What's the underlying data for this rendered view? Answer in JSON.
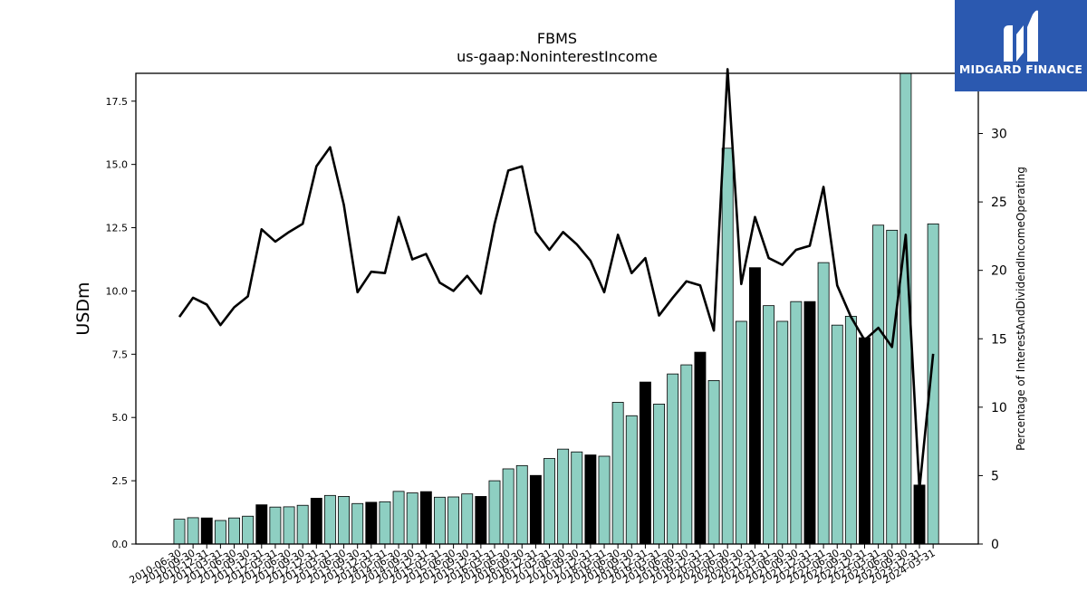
{
  "chart_data": {
    "type": "bar",
    "title": "FBMS",
    "subtitle": "us-gaap:NoninterestIncome",
    "ylabel": "USDm",
    "y2label": "Percentage of InterestAndDividendIncomeOperating",
    "ylim": [
      0,
      18.6
    ],
    "y2lim": [
      0,
      34.4
    ],
    "yticks": [
      "0.0",
      "2.5",
      "5.0",
      "7.5",
      "10.0",
      "12.5",
      "15.0",
      "17.5"
    ],
    "y2ticks": [
      "0",
      "5",
      "10",
      "15",
      "20",
      "25",
      "30"
    ],
    "colors": {
      "bar": "#8ecfc2",
      "bar_year_end": "#000000",
      "line": "#000000"
    },
    "categories": [
      "2010-06-30",
      "2010-09-30",
      "2010-12-31",
      "2011-03-31",
      "2011-06-30",
      "2011-09-30",
      "2011-12-31",
      "2012-03-31",
      "2012-06-30",
      "2012-09-30",
      "2012-12-31",
      "2013-03-31",
      "2013-06-30",
      "2013-09-30",
      "2013-12-31",
      "2014-03-31",
      "2014-06-30",
      "2014-09-30",
      "2014-12-31",
      "2015-03-31",
      "2015-06-30",
      "2015-09-30",
      "2015-12-31",
      "2016-03-31",
      "2016-06-30",
      "2016-09-30",
      "2016-12-31",
      "2017-03-31",
      "2017-06-30",
      "2017-09-30",
      "2017-12-31",
      "2018-03-31",
      "2018-06-30",
      "2018-09-30",
      "2018-12-31",
      "2019-03-31",
      "2019-06-30",
      "2019-09-30",
      "2019-12-31",
      "2020-03-31",
      "2020-06-30",
      "2020-09-30",
      "2020-12-31",
      "2021-03-31",
      "2021-06-30",
      "2021-09-30",
      "2021-12-31",
      "2022-03-31",
      "2022-06-30",
      "2022-09-30",
      "2022-12-31",
      "2023-03-31",
      "2023-06-30",
      "2023-09-30",
      "2023-12-31",
      "2024-03-31"
    ],
    "xtick_labels": [
      "2010-06-30",
      "2010-09-30",
      "2010-12-31",
      "2011-03-31",
      "2011-06-30",
      "2011-09-30",
      "2011-12-31",
      "2012-03-31",
      "2012-06-30",
      "2012-09-30",
      "2012-12-31",
      "2013-03-31",
      "2013-06-30",
      "2013-09-30",
      "2013-12-31",
      "2014-03-31",
      "2014-06-30",
      "2014-09-30",
      "2014-12-31",
      "2015-03-31",
      "2015-06-30",
      "2015-09-30",
      "2015-12-31",
      "2016-03-31",
      "2016-06-30",
      "2016-09-30",
      "2016-12-31",
      "2017-03-31",
      "2017-06-30",
      "2017-09-30",
      "2017-12-31",
      "2018-03-31",
      "2018-06-30",
      "2018-09-30",
      "2018-12-31",
      "2019-03-31",
      "2019-06-30",
      "2019-09-30",
      "2019-12-31",
      "2020-03-31",
      "2020-06-30",
      "2020-09-30",
      "2020-12-31",
      "2021-03-31",
      "2021-06-30",
      "2021-09-30",
      "2021-12-31",
      "2022-03-31",
      "2022-06-30",
      "2022-09-30",
      "2022-12-31",
      "2023-03-31",
      "2023-06-30",
      "2023-09-30",
      "2023-12-31",
      "2024-03-31"
    ],
    "series": [
      {
        "axis": "left",
        "kind": "bar",
        "values": [
          0.98,
          1.04,
          1.03,
          0.93,
          1.03,
          1.1,
          1.55,
          1.46,
          1.47,
          1.53,
          1.81,
          1.92,
          1.88,
          1.6,
          1.65,
          1.67,
          2.08,
          2.02,
          2.07,
          1.85,
          1.86,
          1.98,
          1.88,
          2.5,
          2.97,
          3.1,
          2.71,
          3.38,
          3.75,
          3.64,
          3.52,
          3.47,
          5.6,
          5.07,
          6.4,
          5.53,
          6.72,
          7.08,
          7.58,
          6.46,
          15.64,
          8.8,
          10.92,
          9.42,
          8.8,
          9.58,
          9.58,
          11.12,
          8.65,
          9.0,
          8.15,
          12.6,
          12.4,
          18.6,
          2.33,
          12.65
        ],
        "year_end": [
          false,
          false,
          true,
          false,
          false,
          false,
          true,
          false,
          false,
          false,
          true,
          false,
          false,
          false,
          true,
          false,
          false,
          false,
          true,
          false,
          false,
          false,
          true,
          false,
          false,
          false,
          true,
          false,
          false,
          false,
          true,
          false,
          false,
          false,
          true,
          false,
          false,
          false,
          true,
          false,
          false,
          false,
          true,
          false,
          false,
          false,
          true,
          false,
          false,
          false,
          true,
          false,
          false,
          false,
          true,
          false
        ]
      },
      {
        "axis": "right",
        "kind": "line",
        "values": [
          16.6,
          18.0,
          17.5,
          16.0,
          17.3,
          18.1,
          23.0,
          22.1,
          22.8,
          23.4,
          27.6,
          29.0,
          24.8,
          18.4,
          19.9,
          19.8,
          23.9,
          20.8,
          21.2,
          19.1,
          18.5,
          19.6,
          18.3,
          23.4,
          27.3,
          27.6,
          22.8,
          21.5,
          22.8,
          21.9,
          20.7,
          18.4,
          22.6,
          19.8,
          20.9,
          16.7,
          18.0,
          19.2,
          18.9,
          15.6,
          34.7,
          19.0,
          23.9,
          20.9,
          20.4,
          21.5,
          21.8,
          26.1,
          18.9,
          16.6,
          14.9,
          15.8,
          14.4,
          22.6,
          4.0,
          13.9
        ]
      }
    ],
    "grid": false,
    "legend": "none"
  },
  "logo": {
    "text": "MIDGARD FINANCE",
    "icon": "midgard-logo-icon"
  }
}
